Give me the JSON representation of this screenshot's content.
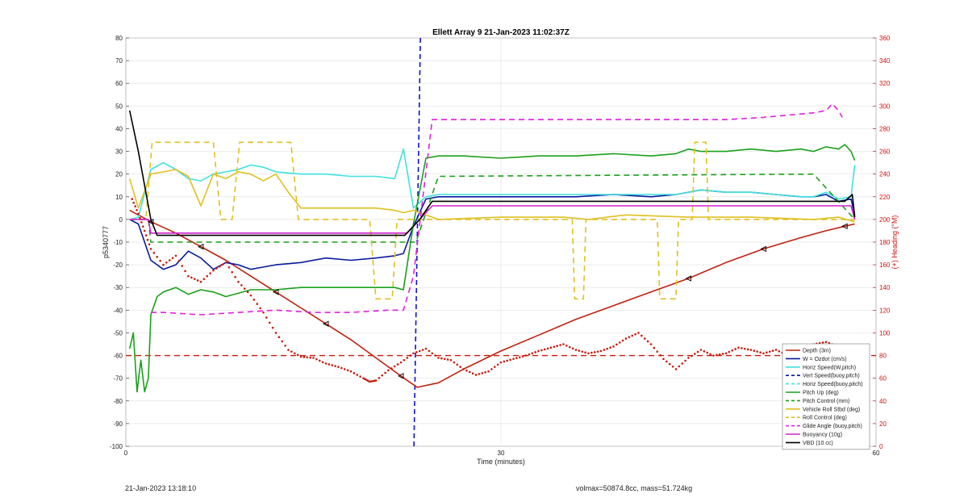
{
  "chart_data": {
    "type": "line",
    "title": "Ellett Array 9 21-Jan-2023 11:02:37Z",
    "xlabel": "Time (minutes)",
    "ylabel": "p5340777",
    "y2label": "(+) Heading (°M)",
    "xlim": [
      0,
      60
    ],
    "ylim": [
      -100,
      80
    ],
    "y2lim": [
      0,
      360
    ],
    "xticks": [
      "0",
      "30",
      "60"
    ],
    "yticks": [
      "80",
      "70",
      "60",
      "50",
      "40",
      "30",
      "20",
      "10",
      "0",
      "-10",
      "-20",
      "-30",
      "-40",
      "-50",
      "-60",
      "-70",
      "-80",
      "-90",
      "-100"
    ],
    "y2ticks": [
      "360",
      "340",
      "320",
      "300",
      "280",
      "260",
      "240",
      "220",
      "200",
      "180",
      "160",
      "140",
      "120",
      "100",
      "80",
      "60",
      "40",
      "20",
      "0"
    ],
    "grid": true,
    "legend_position": "bottom-right",
    "vertical_marker_x": 23.3,
    "series": [
      {
        "name": "Depth (3m)",
        "color": "#c0200f",
        "style": "solid",
        "x": [
          0.3,
          2,
          4,
          6,
          8,
          10,
          12,
          14,
          16,
          18,
          20,
          22,
          23.3,
          25,
          27,
          30,
          33,
          36,
          39,
          42,
          45,
          48,
          51,
          54,
          56,
          57.5,
          58.3
        ],
        "y": [
          4,
          -1,
          -6,
          -12,
          -18,
          -25,
          -32,
          -39,
          -46,
          -53,
          -61,
          -69,
          -74,
          -72,
          -66,
          -58,
          -51,
          -44,
          -38,
          -32,
          -26,
          -19,
          -13,
          -8,
          -5,
          -3,
          -2
        ]
      },
      {
        "name": "W = Ozdot (cm/s)",
        "color": "#0a1aa0",
        "style": "solid",
        "x": [
          0.3,
          1,
          2,
          3,
          4,
          5,
          6,
          7,
          8,
          9,
          10,
          11,
          12,
          14,
          16,
          18,
          20,
          21.5,
          22.2,
          23,
          24,
          25,
          27,
          30,
          33,
          36,
          39,
          42,
          44,
          46,
          48,
          50,
          52,
          54,
          55,
          56,
          57,
          58,
          58.3
        ],
        "y": [
          0,
          -2,
          -18,
          -22,
          -20,
          -14,
          -17,
          -22,
          -19,
          -20,
          -22,
          -21,
          -20,
          -19,
          -17,
          -18,
          -17,
          -16,
          -15,
          -3,
          9,
          10,
          10,
          10,
          10,
          10,
          11,
          10,
          11,
          13,
          12,
          12,
          11,
          10,
          10,
          11,
          8,
          9,
          2
        ]
      },
      {
        "name": "Horiz Speed(W,pitch)",
        "color": "#40e0e0",
        "style": "solid",
        "x": [
          0.3,
          1,
          2,
          3,
          4,
          5,
          6,
          7,
          8,
          9,
          10,
          11,
          12,
          14,
          16,
          18,
          20,
          21.5,
          22.2,
          23,
          24,
          25,
          27,
          30,
          33,
          36,
          39,
          42,
          44,
          46,
          48,
          50,
          52,
          54,
          55,
          56,
          57,
          58,
          58.3
        ],
        "y": [
          0,
          1,
          22,
          25,
          22,
          18,
          17,
          20,
          21,
          22,
          24,
          23,
          21,
          20,
          20,
          19,
          19,
          18,
          31,
          5,
          10,
          11,
          11,
          11,
          11,
          11,
          11,
          11,
          11,
          13,
          12,
          12,
          11,
          10,
          10,
          12,
          9,
          10,
          24
        ]
      },
      {
        "name": "Vert Speed(buoy,pitch)",
        "color": "#0a1aa0",
        "style": "dashed",
        "x": [],
        "y": []
      },
      {
        "name": "Horiz Speed(buoy,pitch)",
        "color": "#40e0e0",
        "style": "dashed",
        "x": [],
        "y": []
      },
      {
        "name": "Pitch Up (deg)",
        "color": "#1aa01a",
        "style": "solid",
        "x": [
          0.3,
          0.6,
          0.9,
          1.2,
          1.5,
          1.8,
          2,
          2.5,
          3,
          4,
          5,
          6,
          7,
          8,
          10,
          12,
          14,
          16,
          18,
          20,
          21.5,
          22.2,
          23,
          24,
          25,
          27,
          30,
          33,
          36,
          39,
          42,
          44,
          45,
          46,
          48,
          50,
          52,
          54,
          55,
          56,
          57,
          57.5,
          58,
          58.3
        ],
        "y": [
          -57,
          -50,
          -76,
          -62,
          -76,
          -70,
          -42,
          -34,
          -32,
          -30,
          -33,
          -31,
          -32,
          -34,
          -31,
          -31,
          -30,
          -30,
          -30,
          -30,
          -30,
          -31,
          -2,
          27,
          28,
          28,
          27,
          28,
          28,
          29,
          28,
          29,
          31,
          30,
          30,
          31,
          30,
          31,
          30,
          32,
          31,
          33,
          30,
          26
        ]
      },
      {
        "name": "Pitch Control (mm)",
        "color": "#1aa01a",
        "style": "dashed",
        "x": [
          0.3,
          1.8,
          2,
          22.6,
          23.2,
          25,
          55,
          58.3
        ],
        "y": [
          0,
          0,
          -10,
          -10,
          -10,
          19,
          20,
          0
        ]
      },
      {
        "name": "Vehicle Roll Stbd (deg)",
        "color": "#e0c020",
        "style": "solid",
        "x": [
          0.3,
          1,
          2,
          3,
          4,
          5,
          6,
          7,
          8,
          9,
          10,
          11,
          12,
          13,
          14,
          16,
          18,
          20,
          21.5,
          22.2,
          23,
          24,
          25,
          30,
          35,
          37,
          40,
          45,
          50,
          55,
          57,
          58.3
        ],
        "y": [
          18,
          5,
          20,
          21,
          22,
          19,
          6,
          20,
          18,
          21,
          20,
          17,
          20,
          12,
          5,
          5,
          5,
          5,
          4,
          3,
          4,
          2,
          0,
          1,
          1,
          0,
          2,
          1,
          1,
          0,
          1,
          -1
        ]
      },
      {
        "name": "Roll Control (deg)",
        "color": "#e0c020",
        "style": "dashed",
        "x": [
          0.3,
          1.6,
          2.1,
          7,
          7.6,
          8.5,
          9.1,
          13.2,
          13.8,
          19.5,
          20,
          21.3,
          21.7,
          22.5,
          23.3,
          25,
          35.7,
          35.9,
          36.6,
          36.8,
          42.5,
          42.7,
          44,
          44.2,
          45.3,
          45.5,
          46.4,
          46.6,
          58.3
        ],
        "y": [
          0,
          0,
          34,
          34,
          0,
          0,
          34,
          34,
          0,
          0,
          -35,
          -35,
          0,
          0,
          0,
          0,
          0,
          -35,
          -35,
          0,
          0,
          -35,
          -35,
          0,
          0,
          34,
          34,
          0,
          0
        ]
      },
      {
        "name": "Glide Angle (buoy,pitch)",
        "color": "#e020e0",
        "style": "dashed",
        "x": [
          2,
          3,
          6,
          9,
          12,
          15,
          18,
          21,
          22.2,
          23,
          24.5,
          27,
          30,
          33,
          36,
          39,
          42,
          45,
          48,
          51,
          53,
          55,
          56,
          56.5,
          57,
          57.3
        ],
        "y": [
          -41,
          -41,
          -42,
          -41,
          -40,
          -41,
          -41,
          -40,
          -40,
          -25,
          44,
          44,
          44,
          44,
          44,
          44,
          44,
          44,
          44,
          45,
          46,
          47,
          48,
          51,
          48,
          45
        ]
      },
      {
        "name": "Buoyancy (10g)",
        "color": "#d020d0",
        "style": "solid",
        "x": [
          0.3,
          1.8,
          2,
          22.5,
          24.5,
          58,
          58.3
        ],
        "y": [
          0,
          0,
          -6,
          -6,
          6,
          6,
          0
        ]
      },
      {
        "name": "VBD (10 cc)",
        "color": "#000000",
        "style": "solid",
        "x": [
          0.3,
          1,
          2,
          2.5,
          22.3,
          23.5,
          24.5,
          57.5,
          58.1,
          58.3
        ],
        "y": [
          48,
          30,
          0,
          -7,
          -7,
          0,
          8,
          8,
          11,
          1
        ]
      }
    ],
    "heading_series": {
      "name": "(+) Heading (°M)",
      "color": "#c81a0a",
      "axis": "right",
      "x": [
        0.5,
        1,
        1.5,
        2,
        3,
        4,
        5,
        6,
        7,
        8,
        9,
        10,
        11,
        12,
        13,
        14,
        15,
        16,
        17,
        18,
        19,
        19.5,
        20,
        21,
        22,
        23,
        24,
        25,
        26,
        27,
        28,
        29,
        30,
        31,
        32,
        33,
        34,
        35,
        36,
        37,
        38,
        39,
        40,
        41,
        42,
        43,
        44,
        45,
        46,
        47,
        48,
        49,
        50,
        51,
        52,
        53,
        54,
        55,
        56,
        57
      ],
      "y": [
        218,
        205,
        190,
        174,
        160,
        168,
        150,
        145,
        155,
        162,
        145,
        133,
        118,
        100,
        85,
        79,
        78,
        73,
        70,
        66,
        60,
        57,
        58,
        67,
        74,
        82,
        86,
        78,
        76,
        68,
        63,
        66,
        74,
        77,
        80,
        84,
        87,
        90,
        85,
        82,
        84,
        88,
        95,
        100,
        90,
        77,
        68,
        78,
        85,
        80,
        82,
        87,
        85,
        82,
        85,
        80,
        80,
        90,
        92,
        88
      ]
    },
    "heading_reference": {
      "color": "#c81a0a",
      "style": "dashed",
      "value": 80
    },
    "footer_left": "21-Jan-2023 13:18:10",
    "footer_right": "volmax=50874.8cc, mass=51.724kg"
  }
}
